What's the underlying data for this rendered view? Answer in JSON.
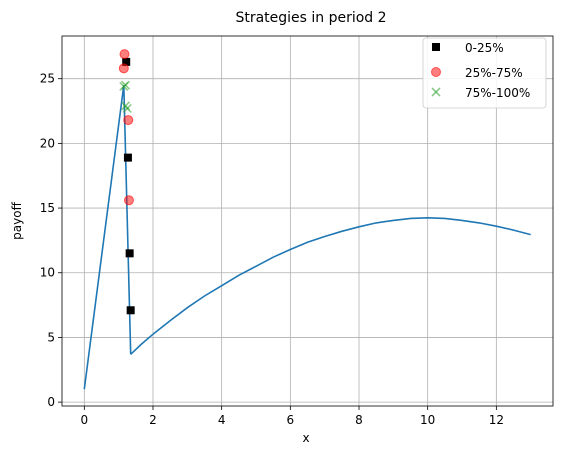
{
  "chart_data": {
    "type": "line",
    "title": "Strategies in period 2",
    "xlabel": "x",
    "ylabel": "payoff",
    "xlim": [
      -0.65,
      13.65
    ],
    "ylim": [
      -0.3,
      28.3
    ],
    "xticks": [
      0,
      2,
      4,
      6,
      8,
      10,
      12
    ],
    "yticks": [
      0,
      5,
      10,
      15,
      20,
      25
    ],
    "grid": true,
    "legend_position": "top-right",
    "curve": {
      "color": "#1f77b4",
      "segments": [
        {
          "x": [
            0,
            1.15,
            1.35
          ],
          "y": [
            1.0,
            24.5,
            3.7
          ]
        },
        {
          "x": [
            1.35,
            1.65,
            2.0,
            2.5,
            3.0,
            3.5,
            4.0,
            4.5,
            5.0,
            5.5,
            6.0,
            6.5,
            7.0,
            7.5,
            8.0,
            8.5,
            9.0,
            9.5,
            10.0,
            10.5,
            11.0,
            11.5,
            12.0,
            12.5,
            13.0
          ],
          "y": [
            3.7,
            4.45,
            5.25,
            6.3,
            7.3,
            8.2,
            9.0,
            9.8,
            10.5,
            11.2,
            11.8,
            12.35,
            12.8,
            13.2,
            13.55,
            13.85,
            14.05,
            14.2,
            14.25,
            14.2,
            14.05,
            13.85,
            13.6,
            13.3,
            12.95
          ]
        }
      ]
    },
    "series": [
      {
        "name": "0-25%",
        "marker": "square",
        "color": "#000000",
        "x": [
          1.22,
          1.27,
          1.32,
          1.35
        ],
        "y": [
          26.3,
          18.9,
          11.5,
          7.1
        ]
      },
      {
        "name": "25%-75%",
        "marker": "circle",
        "color": "#ff0000",
        "x": [
          1.17,
          1.15,
          1.28,
          1.3
        ],
        "y": [
          26.9,
          25.8,
          21.8,
          15.6
        ]
      },
      {
        "name": "75%-100%",
        "marker": "x",
        "color": "#2ca02c",
        "x": [
          1.2,
          1.2,
          1.25,
          1.15
        ],
        "y": [
          24.5,
          22.9,
          22.7,
          24.4
        ]
      }
    ]
  }
}
